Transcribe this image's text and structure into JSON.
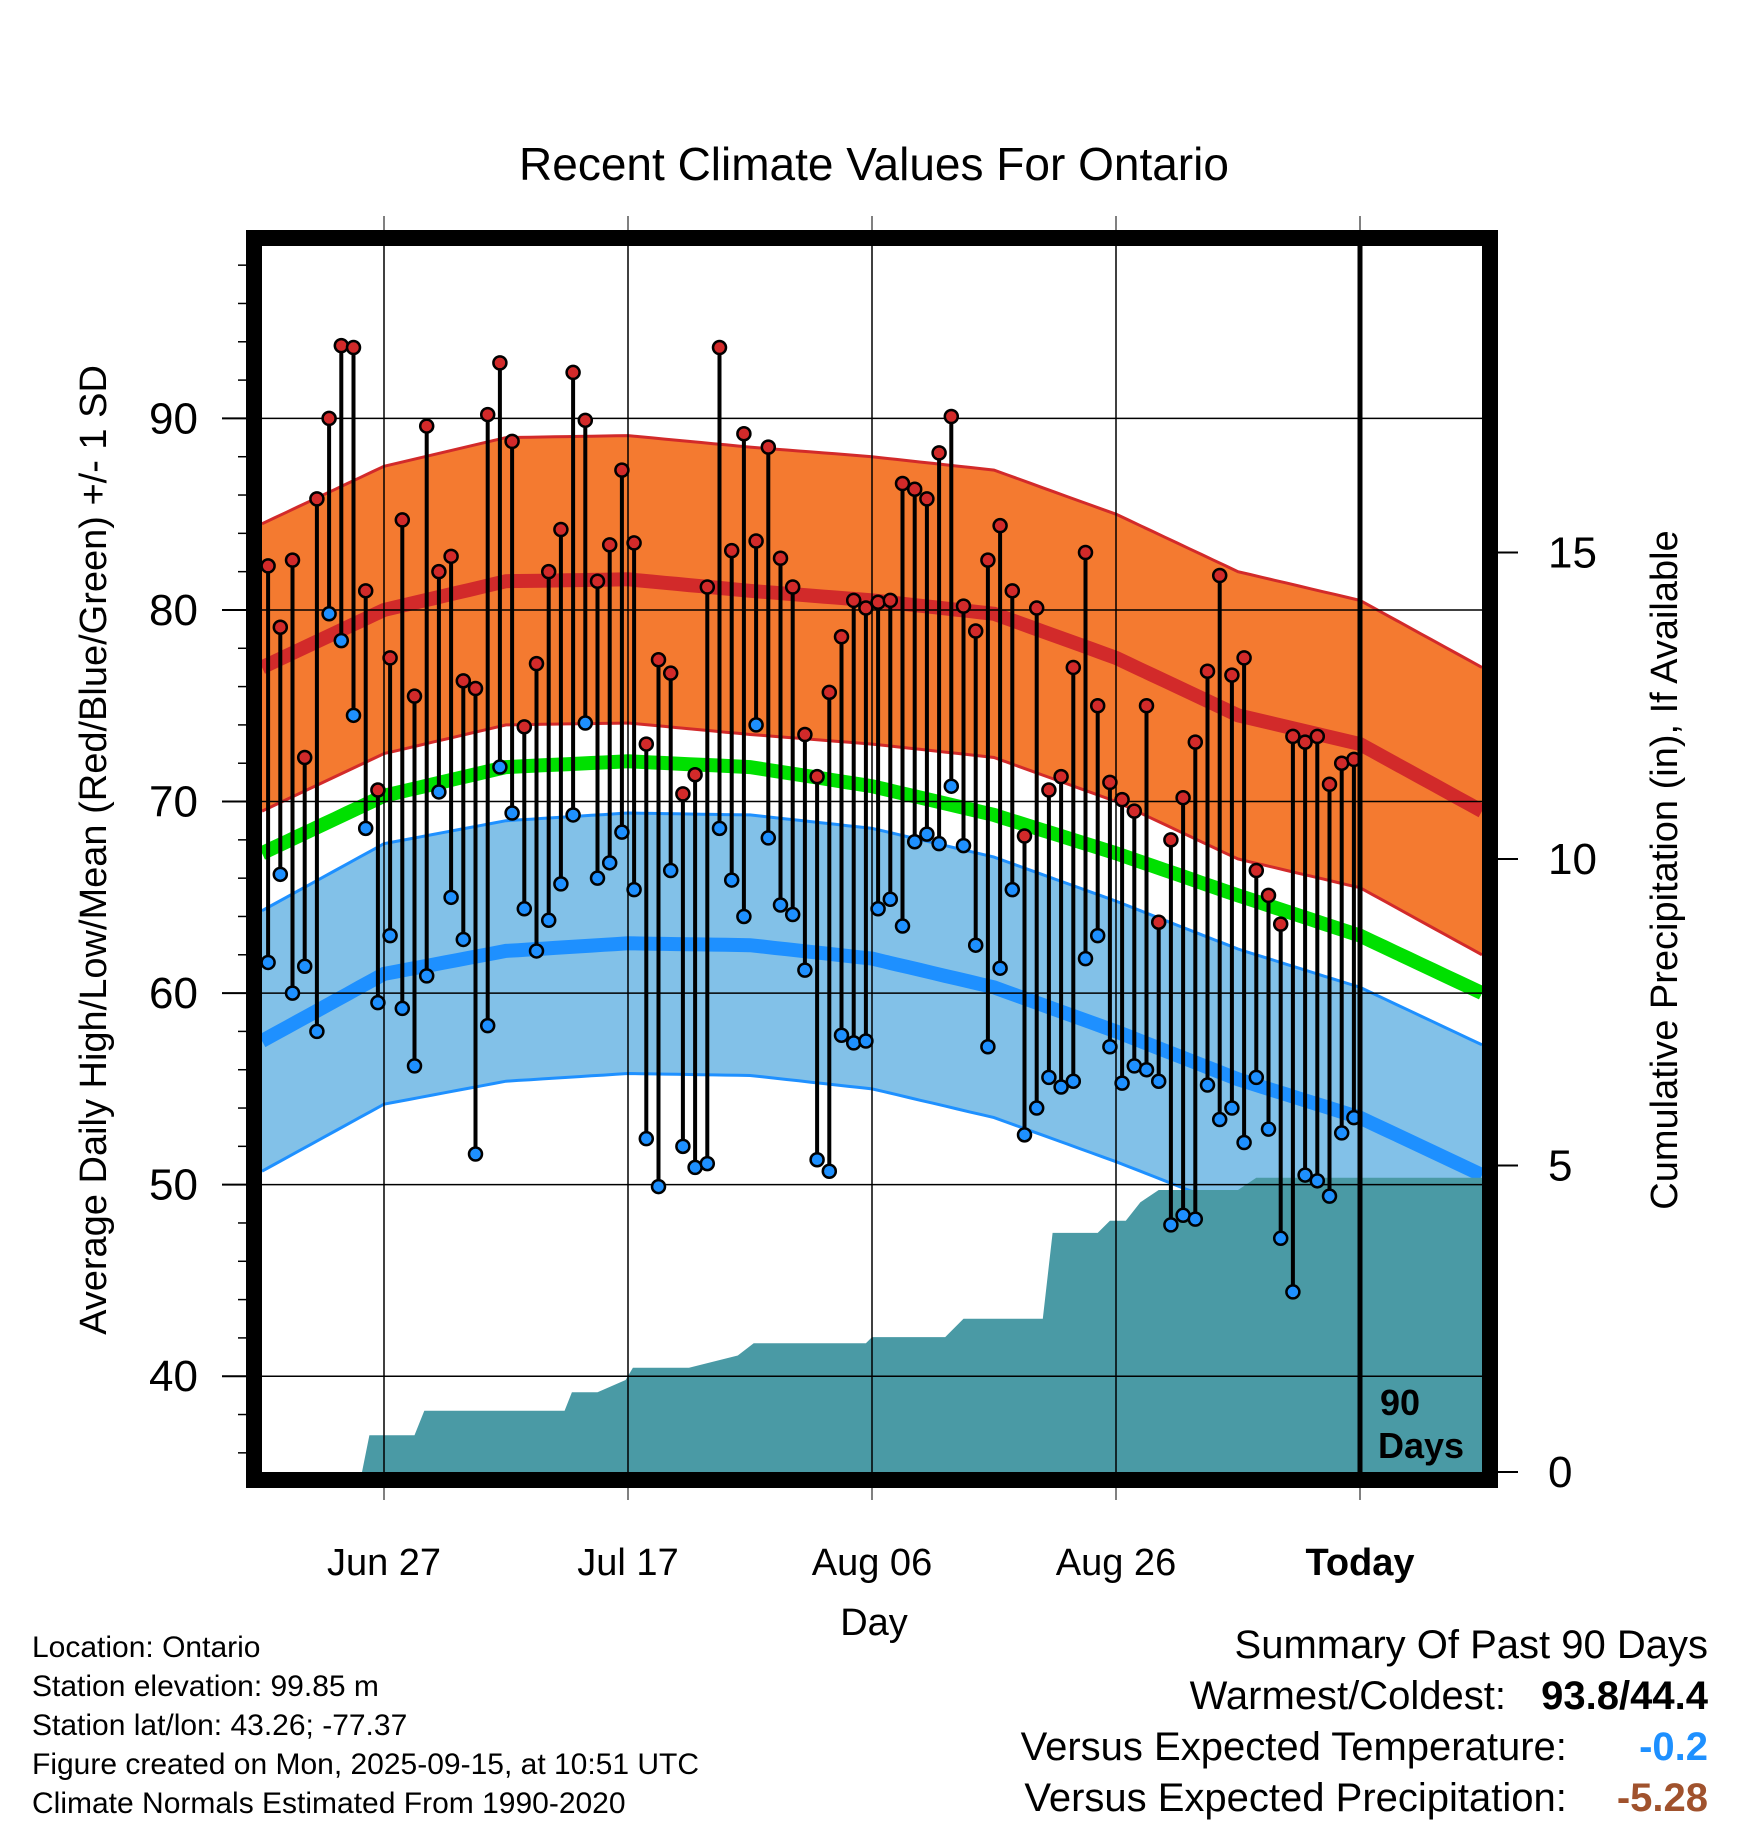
{
  "chart_data": {
    "type": "line",
    "title": "Recent Climate Values For Ontario",
    "xlabel": "Day",
    "ylabel": "Average Daily High/Low/Mean (Red/Blue/Green) +/- 1 SD",
    "y2label": "Cumulative Precipitation (in), If Available",
    "xlim": [
      0,
      100
    ],
    "ylim": [
      35,
      99
    ],
    "y2lim": [
      0,
      20
    ],
    "x_ticks": [
      {
        "x": 10,
        "label": "Jun 27"
      },
      {
        "x": 30,
        "label": "Jul 17"
      },
      {
        "x": 50,
        "label": "Aug 06"
      },
      {
        "x": 70,
        "label": "Aug 26"
      },
      {
        "x": 90,
        "label": "Today"
      }
    ],
    "y_ticks": [
      40,
      50,
      60,
      70,
      80,
      90
    ],
    "y2_ticks": [
      0,
      5,
      10,
      15
    ],
    "today_x": 90,
    "window_label_1": "90",
    "window_label_2": "Days",
    "normals": {
      "x": [
        0,
        10,
        20,
        30,
        40,
        50,
        60,
        70,
        80,
        90,
        100
      ],
      "high_mean": [
        77.0,
        80.0,
        81.5,
        81.6,
        81.0,
        80.5,
        79.8,
        77.5,
        74.5,
        73.0,
        69.5
      ],
      "high_sd": 7.5,
      "low_mean": [
        57.5,
        61.0,
        62.2,
        62.6,
        62.5,
        61.8,
        60.3,
        58.0,
        55.5,
        53.5,
        50.5
      ],
      "low_sd": 6.8,
      "daily_mean": [
        67.3,
        70.3,
        71.8,
        72.1,
        71.8,
        70.8,
        69.3,
        67.3,
        65.1,
        63.0,
        60.0
      ]
    },
    "daily_high": [
      82.3,
      79.1,
      82.6,
      72.3,
      85.8,
      90.0,
      93.8,
      93.7,
      81.0,
      70.6,
      77.5,
      84.7,
      75.5,
      89.6,
      82.0,
      82.8,
      76.3,
      75.9,
      90.2,
      92.9,
      88.8,
      73.9,
      77.2,
      82.0,
      84.2,
      92.4,
      89.9,
      81.5,
      83.4,
      87.3,
      83.5,
      73.0,
      77.4,
      76.7,
      70.4,
      71.4,
      81.2,
      93.7,
      83.1,
      89.2,
      83.6,
      88.5,
      82.7,
      81.2,
      73.5,
      71.3,
      75.7,
      78.6,
      80.5,
      80.1,
      80.4,
      80.5,
      86.6,
      86.3,
      85.8,
      88.2,
      90.1,
      80.2,
      78.9,
      82.6,
      84.4,
      81.0,
      68.2,
      80.1,
      70.6,
      71.3,
      77.0,
      83.0,
      75.0,
      71.0,
      70.1,
      69.5,
      75.0,
      63.7,
      68.0,
      70.2,
      73.1,
      76.8,
      81.8,
      76.6,
      77.5,
      66.4,
      65.1,
      63.6,
      73.4,
      73.1,
      73.4,
      70.9,
      72.0,
      72.2
    ],
    "daily_low": [
      61.6,
      66.2,
      60.0,
      61.4,
      58.0,
      79.8,
      78.4,
      74.5,
      68.6,
      59.5,
      63.0,
      59.2,
      56.2,
      60.9,
      70.5,
      65.0,
      62.8,
      51.6,
      58.3,
      71.8,
      69.4,
      64.4,
      62.2,
      63.8,
      65.7,
      69.3,
      74.1,
      66.0,
      66.8,
      68.4,
      65.4,
      52.4,
      49.9,
      66.4,
      52.0,
      50.9,
      51.1,
      68.6,
      65.9,
      64.0,
      74.0,
      68.1,
      64.6,
      64.1,
      61.2,
      51.3,
      50.7,
      57.8,
      57.4,
      57.5,
      64.4,
      64.9,
      63.5,
      67.9,
      68.3,
      67.8,
      70.8,
      67.7,
      62.5,
      57.2,
      61.3,
      65.4,
      52.6,
      54.0,
      55.6,
      55.1,
      55.4,
      61.8,
      63.0,
      57.2,
      55.3,
      56.2,
      56.0,
      55.4,
      47.9,
      48.4,
      48.2,
      55.2,
      53.4,
      54.0,
      52.2,
      55.6,
      52.9,
      47.2,
      44.4,
      50.5,
      50.2,
      49.4,
      52.7,
      53.5
    ],
    "cumulative_precip": {
      "x": [
        0,
        8.2,
        8.8,
        10.0,
        12.5,
        13.3,
        18.0,
        22.8,
        24.8,
        25.4,
        27.5,
        29.8,
        30.4,
        35.0,
        39.0,
        40.3,
        43.0,
        48.0,
        49.5,
        50.0,
        51.0,
        56.0,
        57.5,
        63.0,
        64.0,
        64.8,
        68.5,
        69.5,
        70.8,
        72.0,
        73.5,
        75.0,
        76.0,
        80.0,
        81.5,
        85.0,
        86.0,
        90.0,
        100.0
      ],
      "in": [
        0,
        0,
        0.6,
        0.6,
        0.6,
        1.0,
        1.0,
        1.0,
        1.0,
        1.3,
        1.3,
        1.5,
        1.7,
        1.7,
        1.9,
        2.1,
        2.1,
        2.1,
        2.1,
        2.2,
        2.2,
        2.2,
        2.5,
        2.5,
        2.5,
        3.9,
        3.9,
        4.1,
        4.1,
        4.4,
        4.6,
        4.6,
        4.6,
        4.6,
        4.8,
        4.8,
        4.8,
        4.8,
        4.8
      ]
    }
  },
  "info": {
    "location": "Location: Ontario",
    "elevation": "Station elevation: 99.85 m",
    "latlon": "Station lat/lon: 43.26; -77.37",
    "created": "Figure created on Mon, 2025-09-15, at 10:51 UTC",
    "normals": "Climate Normals Estimated From 1990-2020"
  },
  "summary": {
    "title": "Summary Of Past 90 Days",
    "warm_cold_label": "Warmest/Coldest:",
    "warmest": "93.8",
    "separator": "/",
    "coldest": "44.4",
    "temp_label": "Versus Expected Temperature:",
    "temp_value": "-0.2",
    "precip_label": "Versus Expected Precipitation:",
    "precip_value": "-5.28",
    "colors": {
      "temp": "#1e90ff",
      "precip": "#a0522d"
    }
  },
  "colors": {
    "high_band": "#f47a30",
    "high_line": "#d22a2a",
    "low_band": "#82c1e8",
    "low_line": "#1e90ff",
    "mean_line": "#00e000",
    "precip": "#4a9aa5",
    "high_dot": "#d22a2a",
    "low_dot": "#1e90ff"
  }
}
